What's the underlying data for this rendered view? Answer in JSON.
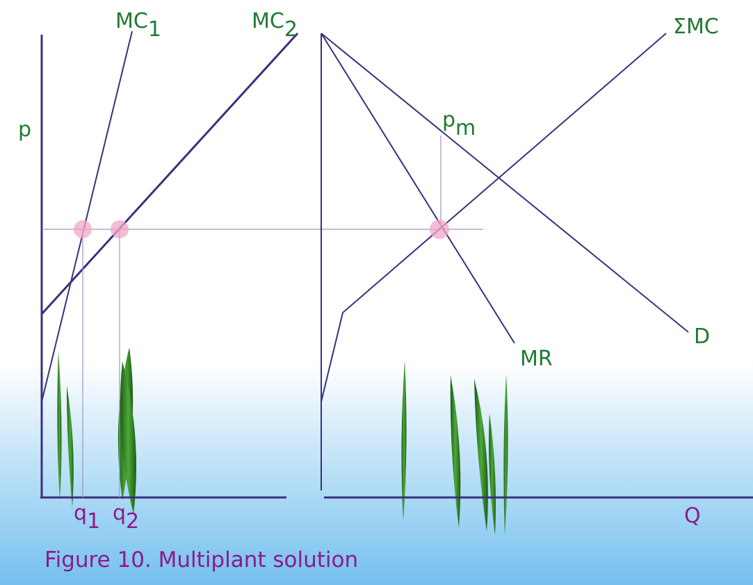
{
  "labels": {
    "price": "p",
    "mc1": {
      "main": "MC",
      "sub": "1"
    },
    "mc2": {
      "main": "MC",
      "sub": "2"
    },
    "sum_mc": "ΣMC",
    "pm": {
      "main": "p",
      "sub": "m"
    },
    "mr": "MR",
    "demand": "D",
    "q1": {
      "main": "q",
      "sub": "1"
    },
    "q2": {
      "main": "q",
      "sub": "2"
    },
    "quantity": "Q"
  },
  "caption": "Figure 10. Multiplant solution"
}
